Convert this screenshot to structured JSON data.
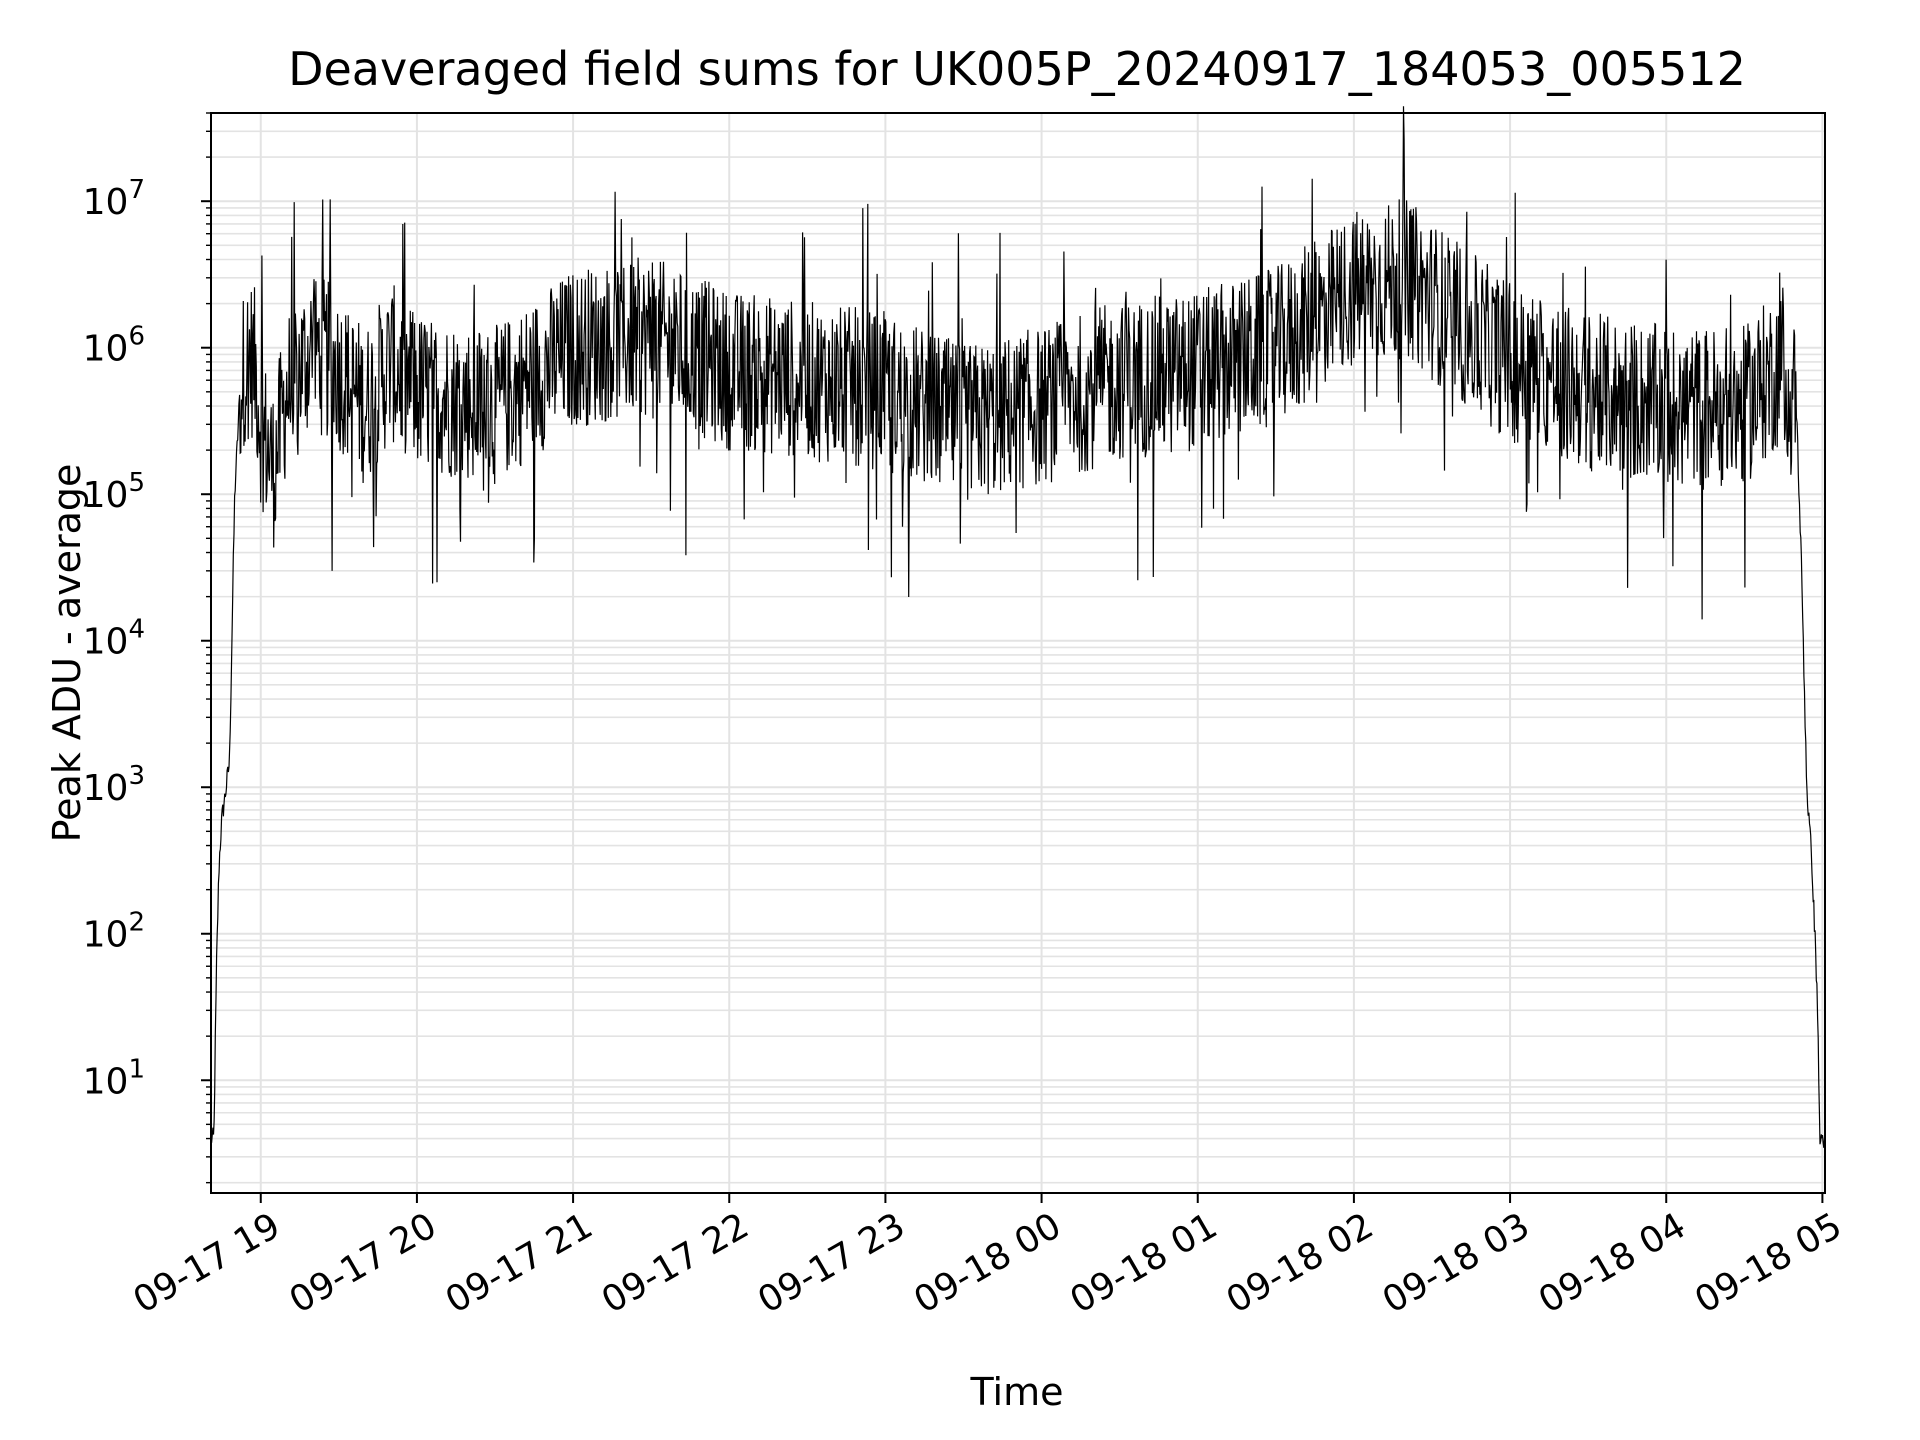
{
  "chart_data": {
    "type": "line",
    "title": "Deaveraged field sums for UK005P_20240917_184053_005512",
    "xlabel": "Time",
    "ylabel": "Peak ADU - average",
    "yscale": "log",
    "ylim": [
      1.7,
      40000000
    ],
    "xlim": [
      "2024-09-17 18:40:53",
      "2024-09-18 05:01:00"
    ],
    "grid": true,
    "line_color": "#000000",
    "x_ticks": [
      "09-17 19",
      "09-17 20",
      "09-17 21",
      "09-17 22",
      "09-17 23",
      "09-18 00",
      "09-18 01",
      "09-18 02",
      "09-18 03",
      "09-18 04",
      "09-18 05"
    ],
    "y_ticks": [
      "10^1",
      "10^2",
      "10^3",
      "10^4",
      "10^5",
      "10^6",
      "10^7"
    ],
    "series": [
      {
        "x": [
          "2024-09-17 18:40",
          "2024-09-17 18:42",
          "2024-09-17 18:43",
          "2024-09-17 18:44",
          "2024-09-17 18:45",
          "2024-09-17 18:46",
          "2024-09-17 18:48",
          "2024-09-17 18:50",
          "2024-09-17 18:52",
          "2024-09-17 18:54",
          "2024-09-17 18:56",
          "2024-09-17 18:58",
          "2024-09-17 19:00",
          "2024-09-17 19:05",
          "2024-09-17 19:10",
          "2024-09-17 19:20",
          "2024-09-17 19:30",
          "2024-09-17 19:40",
          "2024-09-17 19:50",
          "2024-09-17 20:00",
          "2024-09-17 20:30",
          "2024-09-17 21:00",
          "2024-09-17 21:30",
          "2024-09-17 22:00",
          "2024-09-17 22:30",
          "2024-09-17 23:00",
          "2024-09-17 23:30",
          "2024-09-18 00:00",
          "2024-09-18 00:30",
          "2024-09-18 01:00",
          "2024-09-18 01:30",
          "2024-09-18 02:00",
          "2024-09-18 02:20",
          "2024-09-18 02:40",
          "2024-09-18 03:00",
          "2024-09-18 03:30",
          "2024-09-18 04:00",
          "2024-09-18 04:30",
          "2024-09-18 04:45",
          "2024-09-18 04:50",
          "2024-09-18 04:52",
          "2024-09-18 04:54",
          "2024-09-18 04:56",
          "2024-09-18 04:58",
          "2024-09-18 04:59",
          "2024-09-18 05:00",
          "2024-09-18 05:01"
        ],
        "y": [
          4,
          4,
          60,
          300,
          600,
          800,
          1500,
          100000,
          500000,
          800000,
          900000,
          700000,
          300000,
          150000,
          500000,
          1000000,
          700000,
          400000,
          800000,
          500000,
          400000,
          1000000,
          1200000,
          700000,
          600000,
          500000,
          300000,
          400000,
          600000,
          700000,
          1000000,
          2500000,
          3000000,
          1500000,
          800000,
          500000,
          400000,
          400000,
          800000,
          400000,
          30000,
          1000,
          300,
          40,
          4,
          4,
          4
        ]
      }
    ]
  }
}
